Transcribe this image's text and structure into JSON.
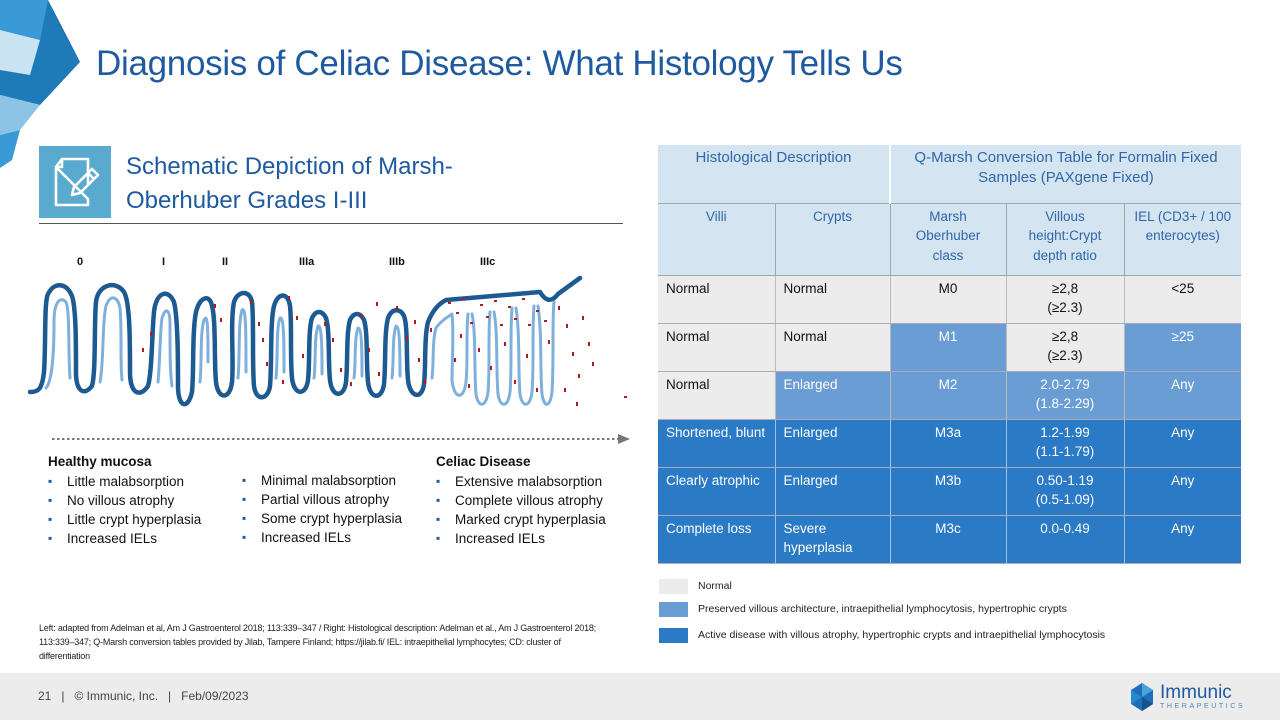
{
  "title": "Diagnosis of Celiac Disease: What Histology Tells Us",
  "section": {
    "icon": "document-edit-icon",
    "heading": "Schematic Depiction of Marsh-Oberhuber Grades I-III"
  },
  "grades": [
    "0",
    "I",
    "II",
    "IIIa",
    "IIIb",
    "IIIc"
  ],
  "columns": [
    {
      "title": "Healthy mucosa",
      "items": [
        "Little malabsorption",
        "No villous atrophy",
        "Little crypt hyperplasia",
        "Increased IELs"
      ]
    },
    {
      "title": "",
      "items": [
        "Minimal malabsorption",
        "Partial villous atrophy",
        "Some crypt hyperplasia",
        "Increased IELs"
      ]
    },
    {
      "title": "Celiac Disease",
      "items": [
        "Extensive malabsorption",
        "Complete villous atrophy",
        "Marked crypt hyperplasia",
        "Increased IELs"
      ]
    }
  ],
  "footnote": "Left: adapted from Adelman et al, Am J Gastroenterol 2018; 113:339–347 / Right: Histological description: Adelman et al., Am J Gastroenterol 2018; 113:339–347; Q-Marsh conversion tables provided by Jilab, Tampere Finland; https://jilab.fi/ IEL: intraepithelial lymphocytes; CD: cluster of differentiation",
  "table": {
    "header_top": [
      "Histological Description",
      "Q-Marsh Conversion Table for Formalin Fixed Samples (PAXgene Fixed)"
    ],
    "header_sub": [
      "Villi",
      "Crypts",
      "Marsh Oberhuber class",
      "Villous height:Crypt depth ratio",
      "IEL (CD3+ / 100 enterocytes)"
    ],
    "rows": [
      {
        "villi": "Normal",
        "crypts": "Normal",
        "marsh": "M0",
        "ratio": "≥2,8",
        "ratio_alt": "(≥2.3)",
        "iel": "<25"
      },
      {
        "villi": "Normal",
        "crypts": "Normal",
        "marsh": "M1",
        "ratio": "≥2,8",
        "ratio_alt": "(≥2.3)",
        "iel": "≥25"
      },
      {
        "villi": "Normal",
        "crypts": "Enlarged",
        "marsh": "M2",
        "ratio": "2.0-2.79",
        "ratio_alt": "(1.8-2.29)",
        "iel": "Any"
      },
      {
        "villi": "Shortened, blunt",
        "crypts": "Enlarged",
        "marsh": "M3a",
        "ratio": "1.2-1.99",
        "ratio_alt": "(1.1-1.79)",
        "iel": "Any"
      },
      {
        "villi": "Clearly atrophic",
        "crypts": "Enlarged",
        "marsh": "M3b",
        "ratio": "0.50-1.19",
        "ratio_alt": "(0.5-1.09)",
        "iel": "Any"
      },
      {
        "villi": "Complete loss",
        "crypts": "Severe hyperplasia",
        "marsh": "M3c",
        "ratio": "0.0-0.49",
        "ratio_alt": "",
        "iel": "Any"
      }
    ]
  },
  "legend": [
    {
      "color": "#ececec",
      "label": "Normal"
    },
    {
      "color": "#6a9dd4",
      "label": "Preserved villous architecture, intraepithelial lymphocytosis, hypertrophic crypts"
    },
    {
      "color": "#2a7ac6",
      "label": "Active disease with villous atrophy, hypertrophic crypts and intraepithelial lymphocytosis"
    }
  ],
  "footer": {
    "page": "21",
    "copyright": "© Immunic, Inc.",
    "date": "Feb/09/2023"
  },
  "logo": {
    "name": "Immunic",
    "tagline": "THERAPEUTICS",
    "icon": "immunic-logo-icon"
  },
  "colors": {
    "title": "#1f5aa0",
    "table_header": "#d4e4f1",
    "normal": "#ececec",
    "preserved": "#6a9dd4",
    "active": "#2a7ac6",
    "iel_dots": "#b01c1c"
  }
}
